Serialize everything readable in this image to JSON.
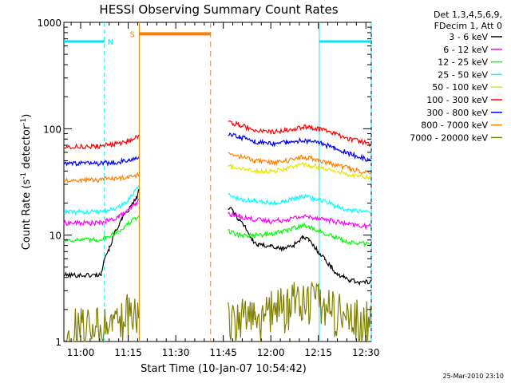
{
  "chart_data": {
    "type": "line",
    "title": "HESSI Observing Summary Count Rates",
    "xlabel": "Start Time (10-Jan-07 10:54:42)",
    "ylabel_main": "Count Rate (s",
    "ylabel_sup1": "-1",
    "ylabel_mid": " detector",
    "ylabel_sup2": "-1",
    "ylabel_end": ")",
    "yscale": "log",
    "ylim": [
      1,
      1000
    ],
    "xlim_min": [
      654.7,
      751.7
    ],
    "x_ticks": [
      {
        "label": "11:00",
        "min": 660
      },
      {
        "label": "11:15",
        "min": 675
      },
      {
        "label": "11:30",
        "min": 690
      },
      {
        "label": "11:45",
        "min": 705
      },
      {
        "label": "12:00",
        "min": 720
      },
      {
        "label": "12:15",
        "min": 735
      },
      {
        "label": "12:30",
        "min": 750
      }
    ],
    "y_ticks": [
      {
        "label": "1",
        "value": 1
      },
      {
        "label": "10",
        "value": 10
      },
      {
        "label": "100",
        "value": 100
      },
      {
        "label": "1000",
        "value": 1000
      }
    ],
    "legend_header": [
      "Det 1,3,4,5,6,9,",
      "FDecim 1, Att 0"
    ],
    "series": [
      {
        "name": "3 - 6 keV",
        "color": "#000000",
        "pts": [
          [
            654.7,
            4.2
          ],
          [
            664.7,
            4.2
          ],
          [
            666.5,
            4.3
          ],
          [
            667.3,
            6
          ],
          [
            669,
            7.5
          ],
          [
            671,
            11
          ],
          [
            673,
            14
          ],
          [
            675.5,
            18
          ],
          [
            676.6,
            20
          ],
          [
            677.5,
            22
          ],
          [
            678.3,
            26
          ],
          null,
          [
            706.5,
            18
          ],
          [
            708,
            17
          ],
          [
            710,
            14
          ],
          [
            712,
            12
          ],
          [
            714,
            9
          ],
          [
            716,
            8
          ],
          [
            718,
            8
          ],
          [
            720,
            8
          ],
          [
            722,
            7.5
          ],
          [
            724,
            7.5
          ],
          [
            727,
            8
          ],
          [
            730,
            9.5
          ],
          [
            732,
            9
          ],
          [
            735,
            7
          ],
          [
            737,
            6
          ],
          [
            739,
            5
          ],
          [
            741,
            4.3
          ],
          [
            743,
            4
          ],
          [
            745,
            3.8
          ],
          [
            748,
            3.6
          ],
          [
            751.5,
            3.6
          ]
        ]
      },
      {
        "name": "6 - 12 keV",
        "color": "#ff00ff",
        "pts": [
          [
            654.7,
            13
          ],
          [
            666,
            13
          ],
          [
            668,
            13.5
          ],
          [
            670,
            14
          ],
          [
            672,
            15
          ],
          [
            674,
            16
          ],
          [
            676,
            18
          ],
          [
            678.3,
            21
          ],
          null,
          [
            706.5,
            16
          ],
          [
            710,
            15
          ],
          [
            715,
            14
          ],
          [
            720,
            13.5
          ],
          [
            725,
            14
          ],
          [
            730,
            15
          ],
          [
            735,
            14.5
          ],
          [
            740,
            13.5
          ],
          [
            745,
            12.5
          ],
          [
            751.5,
            12
          ]
        ]
      },
      {
        "name": "12 - 25 keV",
        "color": "#00ff00",
        "pts": [
          [
            654.7,
            9
          ],
          [
            665,
            9
          ],
          [
            668,
            9.5
          ],
          [
            671,
            10.5
          ],
          [
            674,
            12
          ],
          [
            676,
            13.5
          ],
          [
            678.3,
            15
          ],
          null,
          [
            706.5,
            11
          ],
          [
            710,
            10
          ],
          [
            715,
            10
          ],
          [
            720,
            10.2
          ],
          [
            725,
            11
          ],
          [
            730,
            12.5
          ],
          [
            735,
            11
          ],
          [
            740,
            9.5
          ],
          [
            745,
            8.5
          ],
          [
            751.5,
            8.2
          ]
        ]
      },
      {
        "name": "25 - 50 keV",
        "color": "#00ffff",
        "pts": [
          [
            654.7,
            16.5
          ],
          [
            665,
            16.5
          ],
          [
            668,
            17
          ],
          [
            671,
            18
          ],
          [
            674,
            20
          ],
          [
            676,
            23
          ],
          [
            678.3,
            30
          ],
          null,
          [
            706.5,
            24
          ],
          [
            710,
            22
          ],
          [
            715,
            21
          ],
          [
            720,
            20
          ],
          [
            725,
            21
          ],
          [
            730,
            23
          ],
          [
            735,
            22
          ],
          [
            740,
            19
          ],
          [
            745,
            17
          ],
          [
            751.5,
            16.5
          ]
        ]
      },
      {
        "name": "50 - 100 keV",
        "color": "#e6e600",
        "pts": [
          [
            706.5,
            45
          ],
          [
            710,
            42
          ],
          [
            715,
            40
          ],
          [
            720,
            40
          ],
          [
            725,
            42
          ],
          [
            730,
            46
          ],
          [
            735,
            44
          ],
          [
            740,
            40
          ],
          [
            745,
            37
          ],
          [
            751.5,
            35
          ]
        ]
      },
      {
        "name": "100 - 300 keV",
        "color": "#ff0000",
        "pts": [
          [
            654.7,
            68
          ],
          [
            665,
            68
          ],
          [
            670,
            71
          ],
          [
            675,
            76
          ],
          [
            678.3,
            85
          ],
          null,
          [
            706.5,
            118
          ],
          [
            710,
            108
          ],
          [
            715,
            98
          ],
          [
            720,
            93
          ],
          [
            725,
            97
          ],
          [
            730,
            104
          ],
          [
            735,
            100
          ],
          [
            740,
            90
          ],
          [
            745,
            80
          ],
          [
            751.5,
            72
          ]
        ]
      },
      {
        "name": "300 - 800 keV",
        "color": "#0000ff",
        "pts": [
          [
            654.7,
            47
          ],
          [
            665,
            47
          ],
          [
            670,
            48
          ],
          [
            675,
            50
          ],
          [
            678.3,
            52
          ],
          null,
          [
            706.5,
            90
          ],
          [
            710,
            84
          ],
          [
            715,
            76
          ],
          [
            720,
            72
          ],
          [
            725,
            75
          ],
          [
            730,
            78
          ],
          [
            735,
            74
          ],
          [
            740,
            66
          ],
          [
            745,
            58
          ],
          [
            751.5,
            50
          ]
        ]
      },
      {
        "name": "800 - 7000 keV",
        "color": "#ff8000",
        "pts": [
          [
            654.7,
            33
          ],
          [
            665,
            33
          ],
          [
            670,
            34
          ],
          [
            675,
            35
          ],
          [
            678.3,
            37
          ],
          null,
          [
            706.5,
            58
          ],
          [
            710,
            55
          ],
          [
            715,
            50
          ],
          [
            720,
            48
          ],
          [
            725,
            50
          ],
          [
            730,
            54
          ],
          [
            735,
            51
          ],
          [
            740,
            46
          ],
          [
            745,
            42
          ],
          [
            751.5,
            38
          ]
        ]
      },
      {
        "name": "7000 - 20000 keV",
        "color": "#808000",
        "pts": [
          [
            654.7,
            1.3
          ],
          [
            665,
            1.3
          ],
          [
            670,
            1.5
          ],
          [
            675,
            1.8
          ],
          [
            678.3,
            2.0
          ],
          null,
          [
            706.5,
            1.5
          ],
          [
            715,
            1.7
          ],
          [
            725,
            2.1
          ],
          [
            730,
            2.6
          ],
          [
            735,
            2.2
          ],
          [
            745,
            1.6
          ],
          [
            751.5,
            1.5
          ]
        ]
      }
    ],
    "annotations": {
      "night": {
        "label": "N",
        "color": "#00e5ee",
        "segments": [
          [
            654.7,
            667.5
          ],
          [
            735.3,
            751.7
          ]
        ],
        "level": 660
      },
      "saa": {
        "label": "S",
        "color": "#ff8000",
        "segments": [
          [
            678.5,
            701
          ]
        ],
        "level": 780
      }
    },
    "timestamp": "25-Mar-2010 23:10"
  }
}
